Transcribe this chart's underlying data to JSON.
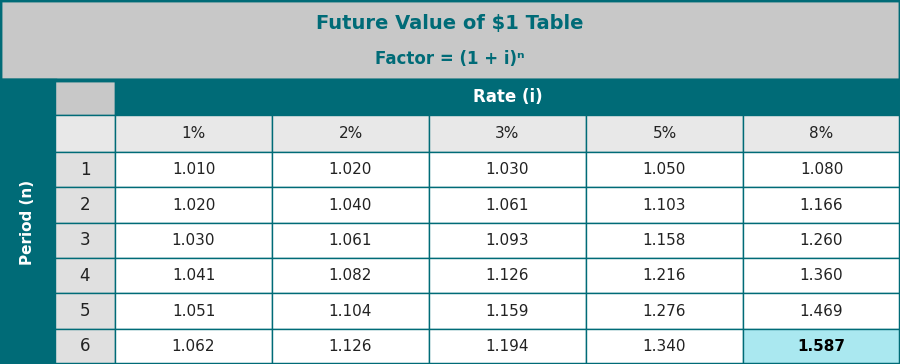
{
  "title_line1": "Future Value of $1 Table",
  "title_line2": "Factor = (1 + i)ⁿ",
  "col_header_label": "Rate (ι)",
  "col_header_label2": "Rate (i)",
  "row_header_label": "Period (n)",
  "rate_headers": [
    "1%",
    "2%",
    "3%",
    "5%",
    "8%"
  ],
  "periods": [
    "1",
    "2",
    "3",
    "4",
    "5",
    "6"
  ],
  "table_data": [
    [
      "1.010",
      "1.020",
      "1.030",
      "1.050",
      "1.080"
    ],
    [
      "1.020",
      "1.040",
      "1.061",
      "1.103",
      "1.166"
    ],
    [
      "1.030",
      "1.061",
      "1.093",
      "1.158",
      "1.260"
    ],
    [
      "1.041",
      "1.082",
      "1.126",
      "1.216",
      "1.360"
    ],
    [
      "1.051",
      "1.104",
      "1.159",
      "1.276",
      "1.469"
    ],
    [
      "1.062",
      "1.126",
      "1.194",
      "1.340",
      "1.587"
    ]
  ],
  "highlight_cell_row": 5,
  "highlight_cell_col": 4,
  "title_bg": "#c8c8c8",
  "title_color": "#006b77",
  "teal": "#006b77",
  "header_bg": "#006b77",
  "header_text_color": "#ffffff",
  "rate_sub_bg": "#e8e8e8",
  "cell_bg_normal": "#ffffff",
  "cell_bg_alt": "#f0f0f0",
  "cell_bg_highlight": "#aae8f0",
  "cell_text_normal": "#222222",
  "cell_text_highlight": "#000000",
  "period_label_bg": "#006b77",
  "period_label_text": "#ffffff",
  "period_num_bg": "#e0e0e0",
  "period_num_text": "#222222",
  "fig_w": 9.0,
  "fig_h": 3.64,
  "dpi": 100
}
